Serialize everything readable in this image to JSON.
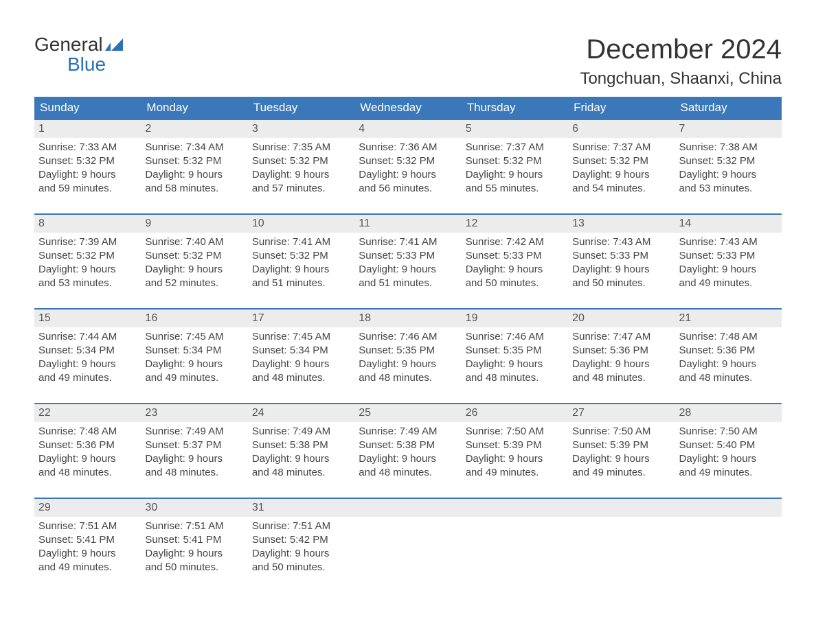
{
  "logo": {
    "line1": "General",
    "line2": "Blue",
    "flag_color": "#2d71b8"
  },
  "header": {
    "title": "December 2024",
    "location": "Tongchuan, Shaanxi, China"
  },
  "colors": {
    "header_bg": "#3a78b9",
    "header_text": "#ffffff",
    "day_num_bg": "#ececec",
    "week_border": "#3a78b9",
    "body_bg": "#ffffff",
    "text": "#333333",
    "logo_blue": "#2d71b8"
  },
  "weekdays": [
    "Sunday",
    "Monday",
    "Tuesday",
    "Wednesday",
    "Thursday",
    "Friday",
    "Saturday"
  ],
  "weeks": [
    [
      {
        "day": "1",
        "sunrise": "Sunrise: 7:33 AM",
        "sunset": "Sunset: 5:32 PM",
        "daylight1": "Daylight: 9 hours",
        "daylight2": "and 59 minutes."
      },
      {
        "day": "2",
        "sunrise": "Sunrise: 7:34 AM",
        "sunset": "Sunset: 5:32 PM",
        "daylight1": "Daylight: 9 hours",
        "daylight2": "and 58 minutes."
      },
      {
        "day": "3",
        "sunrise": "Sunrise: 7:35 AM",
        "sunset": "Sunset: 5:32 PM",
        "daylight1": "Daylight: 9 hours",
        "daylight2": "and 57 minutes."
      },
      {
        "day": "4",
        "sunrise": "Sunrise: 7:36 AM",
        "sunset": "Sunset: 5:32 PM",
        "daylight1": "Daylight: 9 hours",
        "daylight2": "and 56 minutes."
      },
      {
        "day": "5",
        "sunrise": "Sunrise: 7:37 AM",
        "sunset": "Sunset: 5:32 PM",
        "daylight1": "Daylight: 9 hours",
        "daylight2": "and 55 minutes."
      },
      {
        "day": "6",
        "sunrise": "Sunrise: 7:37 AM",
        "sunset": "Sunset: 5:32 PM",
        "daylight1": "Daylight: 9 hours",
        "daylight2": "and 54 minutes."
      },
      {
        "day": "7",
        "sunrise": "Sunrise: 7:38 AM",
        "sunset": "Sunset: 5:32 PM",
        "daylight1": "Daylight: 9 hours",
        "daylight2": "and 53 minutes."
      }
    ],
    [
      {
        "day": "8",
        "sunrise": "Sunrise: 7:39 AM",
        "sunset": "Sunset: 5:32 PM",
        "daylight1": "Daylight: 9 hours",
        "daylight2": "and 53 minutes."
      },
      {
        "day": "9",
        "sunrise": "Sunrise: 7:40 AM",
        "sunset": "Sunset: 5:32 PM",
        "daylight1": "Daylight: 9 hours",
        "daylight2": "and 52 minutes."
      },
      {
        "day": "10",
        "sunrise": "Sunrise: 7:41 AM",
        "sunset": "Sunset: 5:32 PM",
        "daylight1": "Daylight: 9 hours",
        "daylight2": "and 51 minutes."
      },
      {
        "day": "11",
        "sunrise": "Sunrise: 7:41 AM",
        "sunset": "Sunset: 5:33 PM",
        "daylight1": "Daylight: 9 hours",
        "daylight2": "and 51 minutes."
      },
      {
        "day": "12",
        "sunrise": "Sunrise: 7:42 AM",
        "sunset": "Sunset: 5:33 PM",
        "daylight1": "Daylight: 9 hours",
        "daylight2": "and 50 minutes."
      },
      {
        "day": "13",
        "sunrise": "Sunrise: 7:43 AM",
        "sunset": "Sunset: 5:33 PM",
        "daylight1": "Daylight: 9 hours",
        "daylight2": "and 50 minutes."
      },
      {
        "day": "14",
        "sunrise": "Sunrise: 7:43 AM",
        "sunset": "Sunset: 5:33 PM",
        "daylight1": "Daylight: 9 hours",
        "daylight2": "and 49 minutes."
      }
    ],
    [
      {
        "day": "15",
        "sunrise": "Sunrise: 7:44 AM",
        "sunset": "Sunset: 5:34 PM",
        "daylight1": "Daylight: 9 hours",
        "daylight2": "and 49 minutes."
      },
      {
        "day": "16",
        "sunrise": "Sunrise: 7:45 AM",
        "sunset": "Sunset: 5:34 PM",
        "daylight1": "Daylight: 9 hours",
        "daylight2": "and 49 minutes."
      },
      {
        "day": "17",
        "sunrise": "Sunrise: 7:45 AM",
        "sunset": "Sunset: 5:34 PM",
        "daylight1": "Daylight: 9 hours",
        "daylight2": "and 48 minutes."
      },
      {
        "day": "18",
        "sunrise": "Sunrise: 7:46 AM",
        "sunset": "Sunset: 5:35 PM",
        "daylight1": "Daylight: 9 hours",
        "daylight2": "and 48 minutes."
      },
      {
        "day": "19",
        "sunrise": "Sunrise: 7:46 AM",
        "sunset": "Sunset: 5:35 PM",
        "daylight1": "Daylight: 9 hours",
        "daylight2": "and 48 minutes."
      },
      {
        "day": "20",
        "sunrise": "Sunrise: 7:47 AM",
        "sunset": "Sunset: 5:36 PM",
        "daylight1": "Daylight: 9 hours",
        "daylight2": "and 48 minutes."
      },
      {
        "day": "21",
        "sunrise": "Sunrise: 7:48 AM",
        "sunset": "Sunset: 5:36 PM",
        "daylight1": "Daylight: 9 hours",
        "daylight2": "and 48 minutes."
      }
    ],
    [
      {
        "day": "22",
        "sunrise": "Sunrise: 7:48 AM",
        "sunset": "Sunset: 5:36 PM",
        "daylight1": "Daylight: 9 hours",
        "daylight2": "and 48 minutes."
      },
      {
        "day": "23",
        "sunrise": "Sunrise: 7:49 AM",
        "sunset": "Sunset: 5:37 PM",
        "daylight1": "Daylight: 9 hours",
        "daylight2": "and 48 minutes."
      },
      {
        "day": "24",
        "sunrise": "Sunrise: 7:49 AM",
        "sunset": "Sunset: 5:38 PM",
        "daylight1": "Daylight: 9 hours",
        "daylight2": "and 48 minutes."
      },
      {
        "day": "25",
        "sunrise": "Sunrise: 7:49 AM",
        "sunset": "Sunset: 5:38 PM",
        "daylight1": "Daylight: 9 hours",
        "daylight2": "and 48 minutes."
      },
      {
        "day": "26",
        "sunrise": "Sunrise: 7:50 AM",
        "sunset": "Sunset: 5:39 PM",
        "daylight1": "Daylight: 9 hours",
        "daylight2": "and 49 minutes."
      },
      {
        "day": "27",
        "sunrise": "Sunrise: 7:50 AM",
        "sunset": "Sunset: 5:39 PM",
        "daylight1": "Daylight: 9 hours",
        "daylight2": "and 49 minutes."
      },
      {
        "day": "28",
        "sunrise": "Sunrise: 7:50 AM",
        "sunset": "Sunset: 5:40 PM",
        "daylight1": "Daylight: 9 hours",
        "daylight2": "and 49 minutes."
      }
    ],
    [
      {
        "day": "29",
        "sunrise": "Sunrise: 7:51 AM",
        "sunset": "Sunset: 5:41 PM",
        "daylight1": "Daylight: 9 hours",
        "daylight2": "and 49 minutes."
      },
      {
        "day": "30",
        "sunrise": "Sunrise: 7:51 AM",
        "sunset": "Sunset: 5:41 PM",
        "daylight1": "Daylight: 9 hours",
        "daylight2": "and 50 minutes."
      },
      {
        "day": "31",
        "sunrise": "Sunrise: 7:51 AM",
        "sunset": "Sunset: 5:42 PM",
        "daylight1": "Daylight: 9 hours",
        "daylight2": "and 50 minutes."
      },
      null,
      null,
      null,
      null
    ]
  ]
}
